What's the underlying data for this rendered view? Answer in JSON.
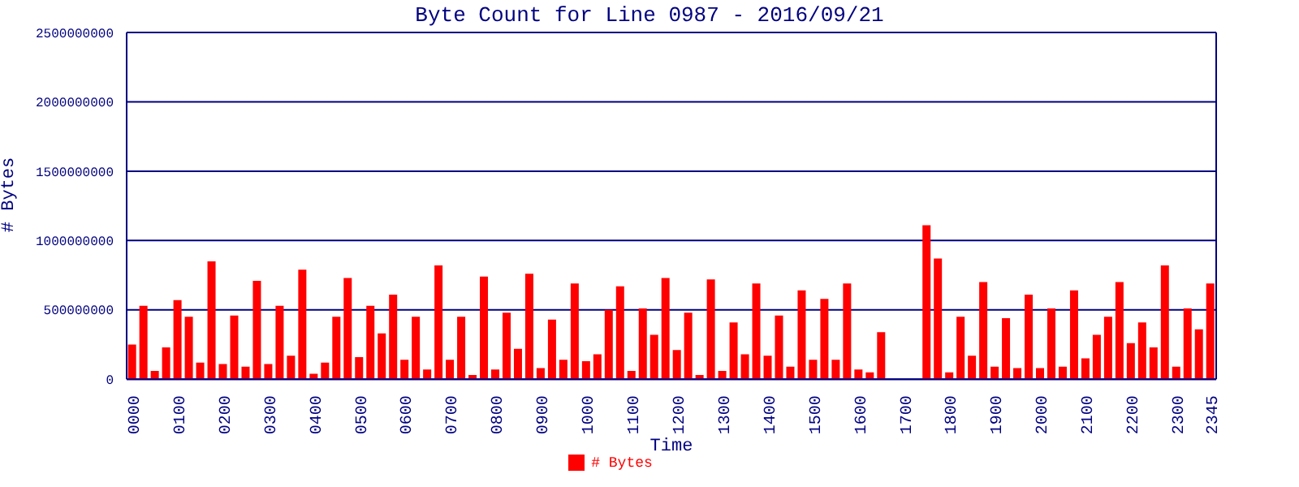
{
  "chart_data": {
    "type": "bar",
    "title": "Byte Count for Line 0987 - 2016/09/21",
    "xlabel": "Time",
    "ylabel": "# Bytes",
    "categories": [
      "0000",
      null,
      null,
      null,
      "0100",
      null,
      null,
      null,
      "0200",
      null,
      null,
      null,
      "0300",
      null,
      null,
      null,
      "0400",
      null,
      null,
      null,
      "0500",
      null,
      null,
      null,
      "0600",
      null,
      null,
      null,
      "0700",
      null,
      null,
      null,
      "0800",
      null,
      null,
      null,
      "0900",
      null,
      null,
      null,
      "1000",
      null,
      null,
      null,
      "1100",
      null,
      null,
      null,
      "1200",
      null,
      null,
      null,
      "1300",
      null,
      null,
      null,
      "1400",
      null,
      null,
      null,
      "1500",
      null,
      null,
      null,
      "1600",
      null,
      null,
      null,
      "1700",
      null,
      null,
      null,
      "1800",
      null,
      null,
      null,
      "1900",
      null,
      null,
      null,
      "2000",
      null,
      null,
      null,
      "2100",
      null,
      null,
      null,
      "2200",
      null,
      null,
      null,
      "2300",
      null,
      null,
      "2345"
    ],
    "series": [
      {
        "name": "# Bytes",
        "color": "#ff0000",
        "values": [
          250000000,
          530000000,
          60000000,
          230000000,
          570000000,
          450000000,
          120000000,
          850000000,
          110000000,
          460000000,
          90000000,
          710000000,
          110000000,
          530000000,
          170000000,
          790000000,
          40000000,
          120000000,
          450000000,
          730000000,
          160000000,
          530000000,
          330000000,
          610000000,
          140000000,
          450000000,
          70000000,
          820000000,
          140000000,
          450000000,
          30000000,
          740000000,
          70000000,
          480000000,
          220000000,
          760000000,
          80000000,
          430000000,
          140000000,
          690000000,
          130000000,
          180000000,
          500000000,
          670000000,
          60000000,
          510000000,
          320000000,
          730000000,
          210000000,
          480000000,
          30000000,
          720000000,
          60000000,
          410000000,
          180000000,
          690000000,
          170000000,
          460000000,
          90000000,
          640000000,
          140000000,
          580000000,
          140000000,
          690000000,
          70000000,
          50000000,
          340000000,
          0,
          0,
          0,
          1110000000,
          870000000,
          50000000,
          450000000,
          170000000,
          700000000,
          90000000,
          440000000,
          80000000,
          610000000,
          80000000,
          510000000,
          90000000,
          640000000,
          150000000,
          320000000,
          450000000,
          700000000,
          260000000,
          410000000,
          230000000,
          820000000,
          90000000,
          510000000,
          360000000,
          690000000
        ]
      }
    ],
    "ylim": [
      0,
      2500000000
    ],
    "yticks": [
      0,
      500000000,
      1000000000,
      1500000000,
      2000000000,
      2500000000
    ],
    "grid": "y",
    "legend": "bottom"
  }
}
